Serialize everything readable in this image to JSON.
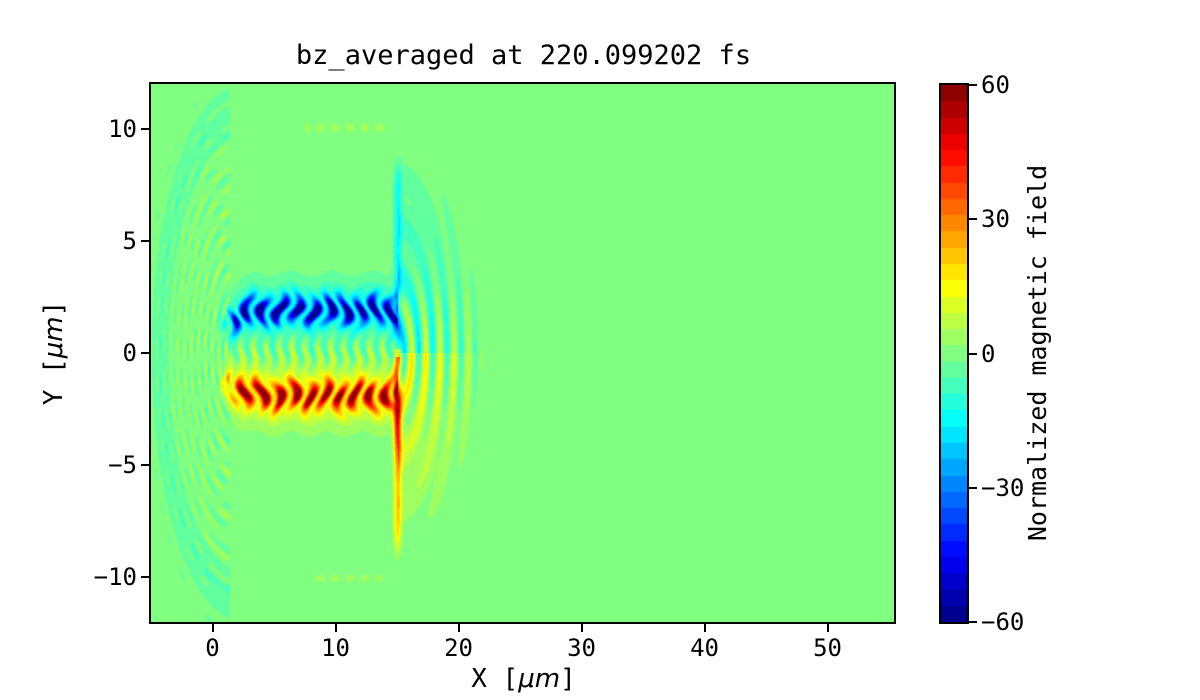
{
  "figure": {
    "background": "#ffffff",
    "text_color": "#000000",
    "field_background_green": "#80ff80",
    "positive_extreme_color": "#800000",
    "negative_extreme_color": "#000080"
  },
  "chart_data": {
    "type": "heatmap",
    "title": "bz_averaged at 220.099202 fs",
    "xlabel": "X [μm]",
    "ylabel": "Y [μm]",
    "xlabel_parts": {
      "prefix": "X [",
      "italic": "μm",
      "suffix": "]"
    },
    "ylabel_parts": {
      "prefix": "Y [",
      "italic": "μm",
      "suffix": "]"
    },
    "colorbar_label": "Normalized magnetic field",
    "colormap": "jet",
    "n_levels": 33,
    "grid": false,
    "xlim": [
      -5,
      55.4
    ],
    "ylim": [
      -12,
      12
    ],
    "clim": [
      -60,
      60
    ],
    "x_ticks": [
      {
        "value": 0,
        "label": "0"
      },
      {
        "value": 10,
        "label": "10"
      },
      {
        "value": 20,
        "label": "20"
      },
      {
        "value": 30,
        "label": "30"
      },
      {
        "value": 40,
        "label": "40"
      },
      {
        "value": 50,
        "label": "50"
      }
    ],
    "y_ticks": [
      {
        "value": 10,
        "label": "10"
      },
      {
        "value": 5,
        "label": "5"
      },
      {
        "value": 0,
        "label": "0"
      },
      {
        "value": -5,
        "label": "−5"
      },
      {
        "value": -10,
        "label": "−10"
      }
    ],
    "colorbar_ticks": [
      {
        "value": 60,
        "label": "60"
      },
      {
        "value": 30,
        "label": "30"
      },
      {
        "value": 0,
        "label": "0"
      },
      {
        "value": -30,
        "label": "−30"
      },
      {
        "value": -60,
        "label": "−60"
      }
    ],
    "background_value": 0,
    "features": {
      "laser_speckle": {
        "center_x": 2.2,
        "y_squash": 0.6,
        "radius": 8.2,
        "x_cut": 1.4,
        "period": 0.56,
        "row_period": 1.5,
        "amplitude": 8.5,
        "ring_radius": 6.5,
        "ring_value": -4
      },
      "channel": {
        "x_start": 0.5,
        "x_end": 15.05,
        "taper_len": 2.0,
        "filament_period": 1.3,
        "upper": {
          "y_center": 1.9,
          "sigma": 0.6,
          "value": -58,
          "halo": -12
        },
        "lower": {
          "y_center": -1.9,
          "sigma": 0.6,
          "value": 56,
          "halo": 14
        },
        "core_amp": 9,
        "core_period": 1.05
      },
      "front": {
        "x": 15.05,
        "thickness": 0.3,
        "y_top": 9.2,
        "y_bottom": -9.6,
        "upper_value": -14,
        "lower_value": 20,
        "hot": {
          "y_center": -3.0,
          "sigma": 1.7,
          "value": 26
        }
      },
      "fan": {
        "rx": 6.9,
        "ry_upper": 9.3,
        "ry_lower": 8.6,
        "y_squash": 0.5,
        "ring_period": 1.15,
        "ring_amp": 14,
        "upper_base": -11,
        "lower_base": 13,
        "equator_sigma": 3.0
      },
      "wall_dashes": [
        {
          "x0": 7.5,
          "x1": 14.2,
          "y": 10.05,
          "sigma": 0.18,
          "value": 5.5
        },
        {
          "x0": 8.3,
          "x1": 13.9,
          "y": -10.05,
          "sigma": 0.16,
          "value": 5.0
        }
      ]
    }
  }
}
